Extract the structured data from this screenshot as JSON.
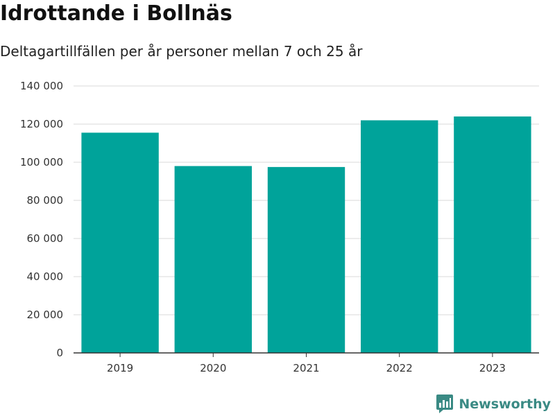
{
  "title": "Idrottande i Bollnäs",
  "subtitle": "Deltagartillfällen per år personer mellan 7 och 25 år",
  "brand": {
    "name": "Newsworthy",
    "icon": "newsworthy-logo-icon"
  },
  "colors": {
    "bar": "#00a39a",
    "grid": "#d9d9d9",
    "axis": "#333333",
    "brand": "#3a8a84"
  },
  "chart_data": {
    "type": "bar",
    "categories": [
      "2019",
      "2020",
      "2021",
      "2022",
      "2023"
    ],
    "values": [
      115500,
      98000,
      97500,
      122000,
      124000
    ],
    "title": "Idrottande i Bollnäs",
    "subtitle": "Deltagartillfällen per år personer mellan 7 och 25 år",
    "xlabel": "",
    "ylabel": "",
    "ylim": [
      0,
      140000
    ],
    "yticks": [
      0,
      20000,
      40000,
      60000,
      80000,
      100000,
      120000,
      140000
    ],
    "ytick_labels": [
      "0",
      "20 000",
      "40 000",
      "60 000",
      "80 000",
      "100 000",
      "120 000",
      "140 000"
    ],
    "grid": true,
    "legend": "none"
  }
}
